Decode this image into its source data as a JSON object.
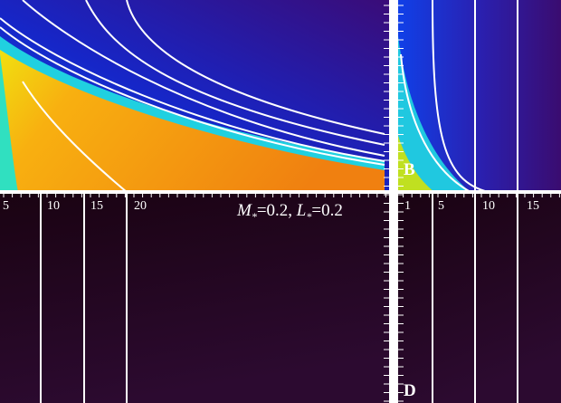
{
  "panels": [
    {
      "x_tick_labels": [
        "5",
        "10",
        "15",
        "20"
      ],
      "annotation": {
        "m": "M",
        "m_sub": "*",
        "m_rest": "=0.2, ",
        "l": "L",
        "l_sub": "*",
        "l_rest": "=0.2"
      }
    },
    {
      "label": "B",
      "x_tick_labels": [
        "1",
        "5",
        "10",
        "15"
      ]
    },
    {
      "label": "D"
    }
  ]
}
